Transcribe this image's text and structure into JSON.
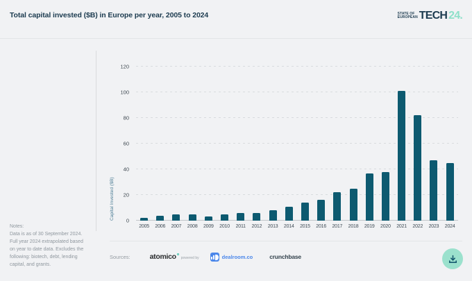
{
  "header": {
    "title": "Total capital invested ($B) in Europe per year, 2005 to 2024"
  },
  "logo": {
    "line1": "State of",
    "line2": "European",
    "word": "Tech",
    "year": "24.",
    "accent_color": "#8ee0c9",
    "text_color": "#1c3b4f"
  },
  "chart_data": {
    "type": "bar",
    "title": "Total capital invested ($B) in Europe per year, 2005 to 2024",
    "categories": [
      "2005",
      "2006",
      "2007",
      "2008",
      "2009",
      "2010",
      "2011",
      "2012",
      "2013",
      "2014",
      "2015",
      "2016",
      "2017",
      "2018",
      "2019",
      "2020",
      "2021",
      "2022",
      "2023",
      "2024"
    ],
    "values": [
      2,
      4,
      5,
      5,
      3,
      5,
      6,
      6,
      8,
      11,
      14,
      16,
      22,
      25,
      37,
      38,
      101,
      82,
      47,
      45
    ],
    "xlabel": "",
    "ylabel": "Capital Invested ($B)",
    "ylim": [
      0,
      120
    ],
    "yticks": [
      0,
      20,
      40,
      60,
      80,
      100,
      120
    ],
    "grid": "horizontal-dashed",
    "legend": "none",
    "bar_color": "#0d5a70"
  },
  "notes": {
    "label": "Notes:",
    "lines": [
      "Data is as of 30 September 2024.",
      "Full year 2024 extrapolated based",
      "on year to date data. Excludes the",
      "following: biotech, debt, lending",
      "capital, and grants."
    ]
  },
  "sources": {
    "label": "Sources:",
    "atomico": "atomico",
    "powered_by": "powered by",
    "dealroom": "dealroom.co",
    "crunchbase": "crunchbase"
  },
  "colors": {
    "background": "#f1f2f4",
    "bar": "#0d5a70",
    "title_text": "#1c3b4f",
    "notes_text": "#8f979e",
    "dealroom_blue": "#4b87ea",
    "download_button_bg": "#9be1cd",
    "download_icon": "#15596f"
  }
}
